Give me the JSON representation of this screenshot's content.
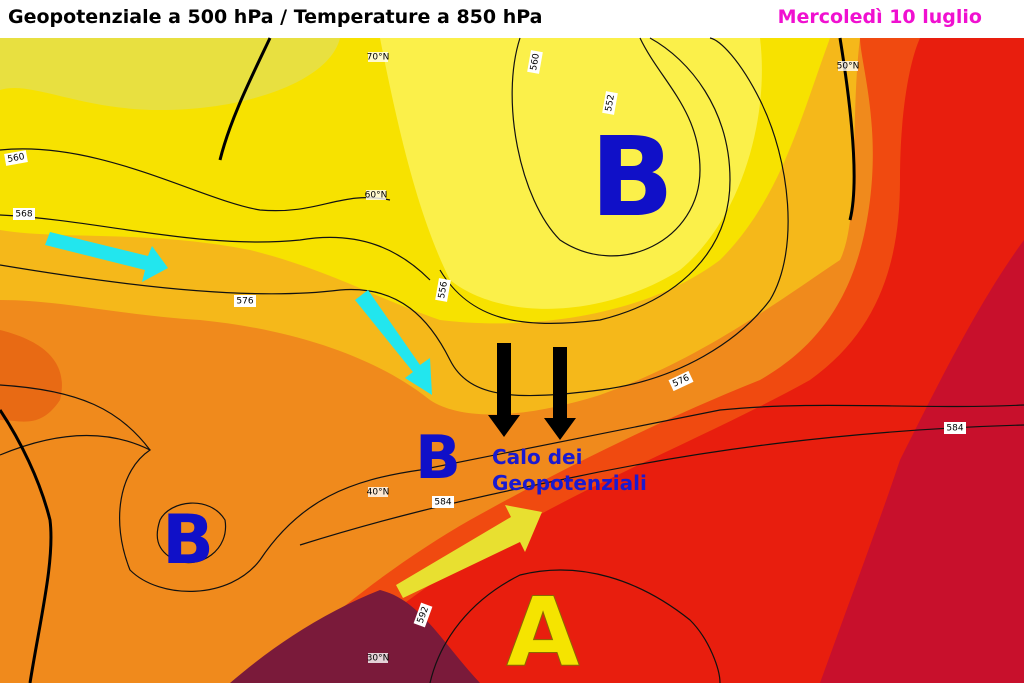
{
  "header": {
    "title": "Geopotenziale a 500 hPa / Temperature a 850 hPa",
    "date": "Mercoledì 10 luglio"
  },
  "annotations": {
    "pressure_labels": [
      "B",
      "B",
      "B",
      "A"
    ],
    "note": [
      "Calo dei",
      "Geopotenziali"
    ]
  },
  "contour_labels": [
    "560",
    "568",
    "576",
    "552",
    "556",
    "576",
    "584",
    "584",
    "592",
    "560"
  ],
  "latitude_labels": [
    "70°N",
    "60°N",
    "50°N",
    "40°N",
    "30°N"
  ]
}
